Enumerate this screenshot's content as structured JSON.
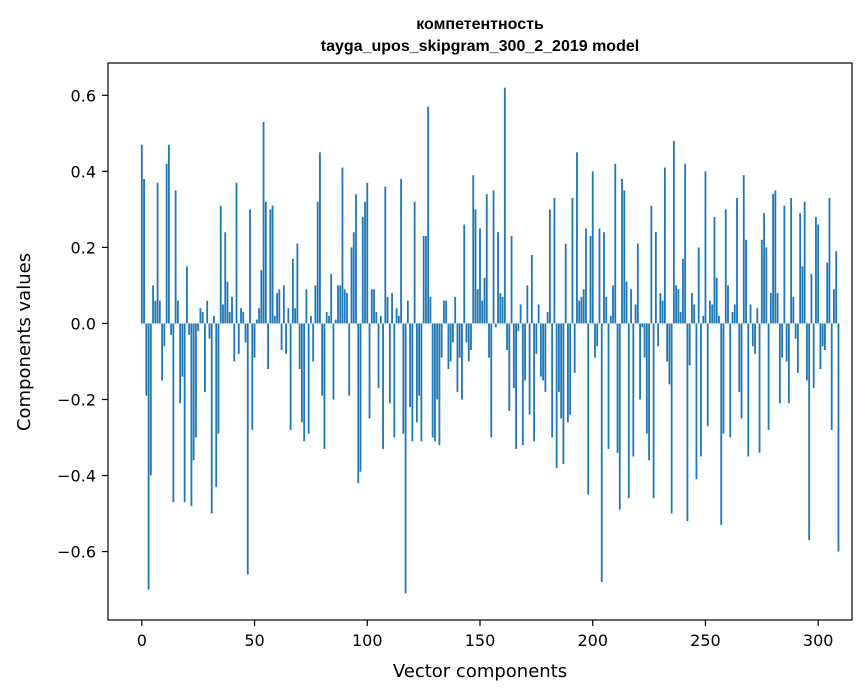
{
  "chart_data": {
    "type": "bar",
    "title": "компетентность",
    "subtitle": "tayga_upos_skipgram_300_2_2019 model",
    "xlabel": "Vector components",
    "ylabel": "Components values",
    "xlim": [
      -15,
      315
    ],
    "ylim": [
      -0.78,
      0.685
    ],
    "x_ticks": [
      0,
      50,
      100,
      150,
      200,
      250,
      300
    ],
    "y_ticks": [
      -0.6,
      -0.4,
      -0.2,
      0.0,
      0.2,
      0.4,
      0.6
    ],
    "y_tick_labels": [
      "−0.6",
      "−0.4",
      "−0.2",
      "0.0",
      "0.2",
      "0.4",
      "0.6"
    ],
    "x_tick_labels": [
      "0",
      "50",
      "100",
      "150",
      "200",
      "250",
      "300"
    ],
    "bar_color": "#1f77b4",
    "grid": false,
    "legend": "none",
    "values": [
      0.47,
      0.38,
      -0.19,
      -0.7,
      -0.4,
      0.1,
      0.06,
      0.37,
      0.06,
      -0.15,
      -0.06,
      0.42,
      0.47,
      -0.03,
      -0.47,
      0.35,
      0.06,
      -0.21,
      -0.14,
      -0.47,
      0.15,
      -0.03,
      -0.48,
      -0.36,
      -0.3,
      -0.02,
      0.04,
      0.03,
      -0.18,
      0.06,
      -0.04,
      -0.5,
      0.02,
      -0.43,
      -0.29,
      0.31,
      0.05,
      0.24,
      0.11,
      0.03,
      0.07,
      -0.1,
      0.37,
      -0.08,
      0.04,
      0.03,
      -0.05,
      -0.66,
      0.3,
      -0.28,
      -0.09,
      0.01,
      0.04,
      0.14,
      0.53,
      0.32,
      -0.12,
      0.3,
      0.31,
      0.02,
      0.08,
      0.09,
      -0.07,
      0.1,
      -0.08,
      0.04,
      -0.28,
      0.17,
      0.04,
      0.21,
      -0.12,
      -0.26,
      -0.31,
      0.09,
      -0.29,
      0.02,
      -0.1,
      0.1,
      0.32,
      0.45,
      -0.19,
      -0.33,
      0.03,
      0.02,
      0.13,
      -0.2,
      0.01,
      0.1,
      0.1,
      0.41,
      0.09,
      0.08,
      -0.19,
      0.2,
      0.24,
      0.34,
      -0.42,
      -0.39,
      0.28,
      0.32,
      0.37,
      -0.25,
      0.09,
      0.09,
      0.03,
      -0.17,
      0.02,
      -0.33,
      0.36,
      0.07,
      -0.21,
      0.08,
      -0.3,
      0.04,
      0.02,
      0.38,
      -0.29,
      -0.71,
      0.06,
      -0.22,
      -0.31,
      0.32,
      -0.26,
      -0.19,
      -0.31,
      0.23,
      0.23,
      0.57,
      0.07,
      -0.3,
      -0.31,
      -0.2,
      -0.32,
      -0.09,
      0.06,
      0.06,
      -0.12,
      -0.1,
      -0.05,
      0.07,
      -0.18,
      -0.09,
      -0.2,
      0.26,
      -0.05,
      -0.1,
      -0.07,
      0.39,
      0.3,
      0.09,
      0.25,
      0.06,
      0.12,
      0.34,
      -0.09,
      -0.3,
      0.35,
      -0.01,
      0.24,
      0.08,
      0.07,
      0.62,
      -0.07,
      -0.23,
      0.23,
      -0.17,
      -0.33,
      -0.02,
      0.05,
      -0.32,
      -0.15,
      0.1,
      -0.24,
      0.18,
      -0.31,
      -0.08,
      0.05,
      -0.14,
      -0.15,
      -0.18,
      0.03,
      0.3,
      -0.3,
      0.33,
      -0.38,
      -0.18,
      -0.25,
      -0.37,
      0.21,
      -0.26,
      -0.24,
      0.33,
      -0.13,
      0.45,
      0.06,
      0.07,
      0.09,
      0.25,
      -0.45,
      0.23,
      0.4,
      -0.09,
      -0.06,
      0.25,
      -0.68,
      0.24,
      0.07,
      -0.33,
      0.02,
      0.1,
      0.42,
      -0.34,
      -0.49,
      0.38,
      0.35,
      0.11,
      -0.46,
      0.09,
      -0.35,
      0.05,
      0.21,
      -0.2,
      -0.01,
      -0.09,
      -0.29,
      -0.36,
      0.31,
      -0.46,
      0.24,
      -0.06,
      0.08,
      0.06,
      0.41,
      -0.1,
      -0.16,
      -0.5,
      0.48,
      0.1,
      0.09,
      0.03,
      0.17,
      0.42,
      -0.52,
      -0.11,
      0.08,
      0.05,
      -0.41,
      0.2,
      -0.35,
      0.02,
      0.4,
      -0.27,
      0.06,
      0.05,
      0.28,
      0.12,
      0.02,
      -0.53,
      -0.29,
      0.3,
      0.1,
      -0.3,
      0.03,
      0.05,
      0.33,
      -0.18,
      -0.25,
      0.39,
      0.22,
      -0.35,
      0.05,
      -0.06,
      -0.08,
      0.04,
      -0.34,
      0.22,
      0.29,
      0.2,
      -0.28,
      0.08,
      0.34,
      0.35,
      0.08,
      -0.21,
      -0.09,
      0.31,
      -0.1,
      -0.21,
      0.33,
      0.07,
      -0.04,
      -0.13,
      0.29,
      0.15,
      0.32,
      -0.15,
      -0.57,
      0.13,
      -0.17,
      0.28,
      0.26,
      -0.12,
      -0.06,
      -0.07,
      0.16,
      0.33,
      -0.28,
      0.09,
      0.19,
      -0.6
    ]
  }
}
